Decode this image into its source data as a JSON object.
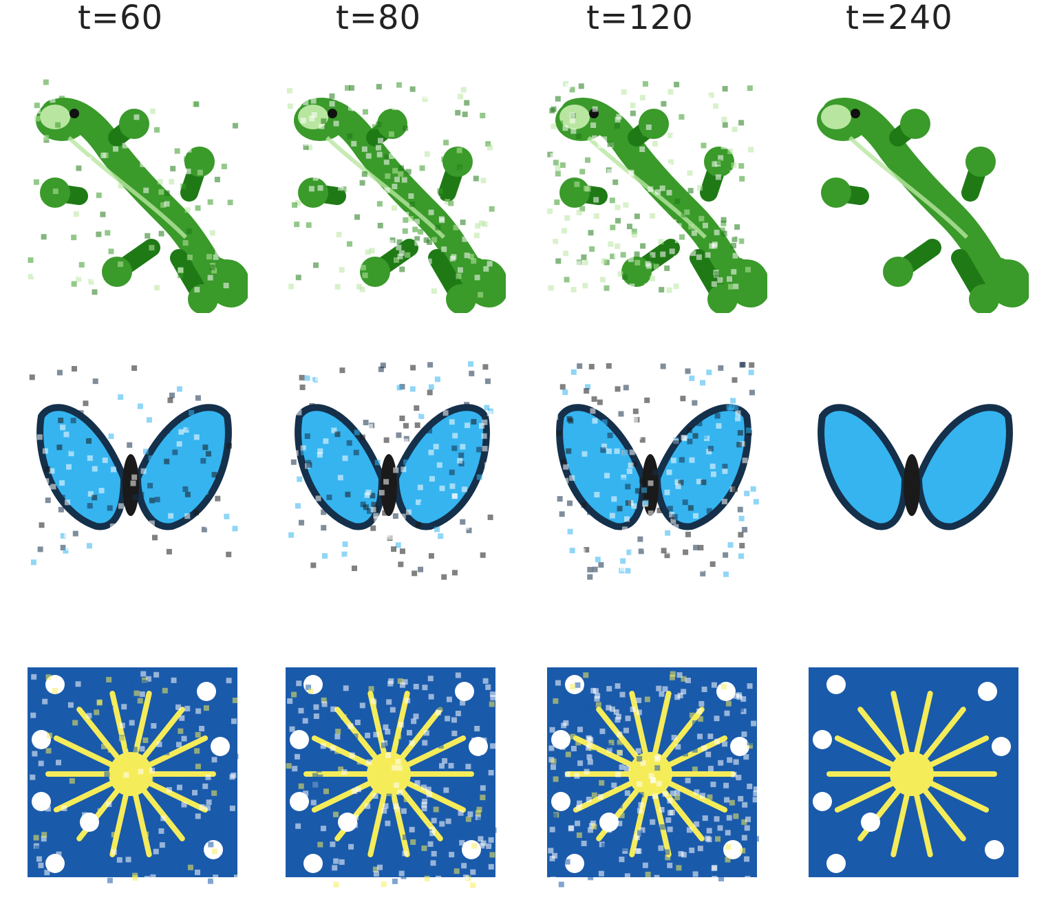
{
  "figure": {
    "column_labels": [
      "t=60",
      "t=80",
      "t=120",
      "t=240"
    ],
    "rows": [
      {
        "subject": "gecko",
        "colors": {
          "body": "#3a9a2a",
          "dark": "#1f7a16",
          "light": "#b8e6a0"
        }
      },
      {
        "subject": "butterfly",
        "colors": {
          "wing": "#35b4f0",
          "edge": "#15304a",
          "body": "#1a1a1a"
        }
      },
      {
        "subject": "sparkler",
        "colors": {
          "background": "#1a5aaa",
          "burst": "#f5ec5a",
          "dots": "#ffffff"
        }
      }
    ],
    "noise_levels": [
      0.35,
      0.55,
      0.7,
      0.0
    ]
  }
}
